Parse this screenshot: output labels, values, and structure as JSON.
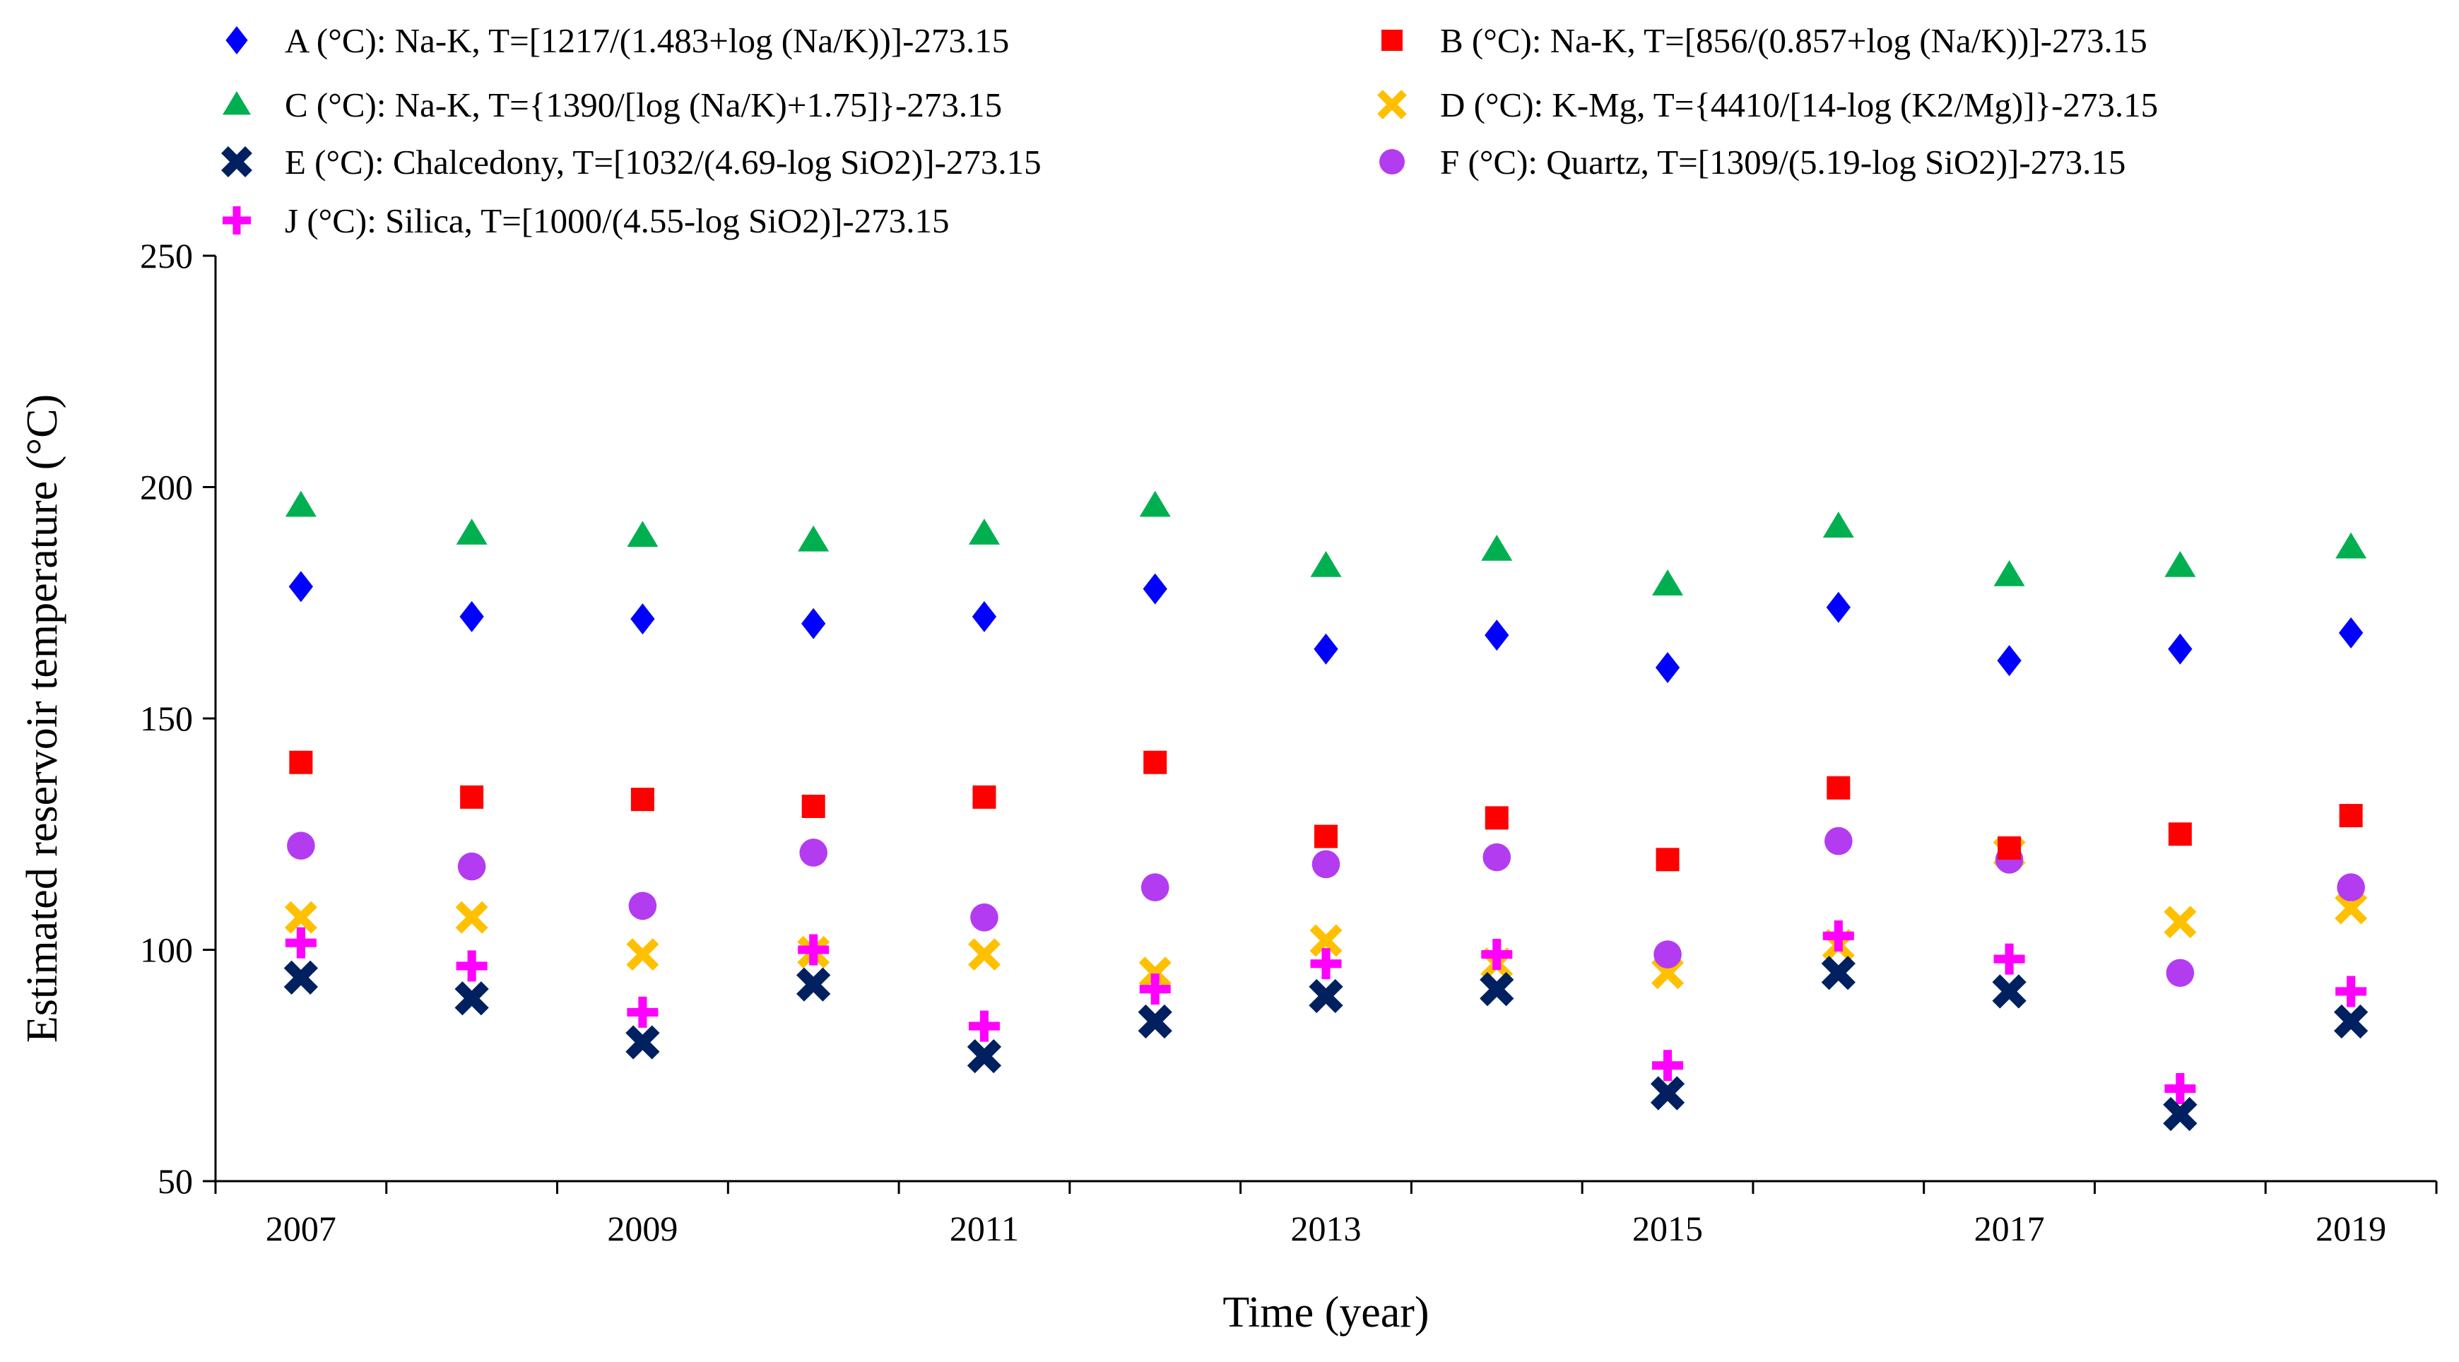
{
  "chart_data": {
    "type": "scatter",
    "title": "",
    "xlabel": "Time (year)",
    "ylabel": "Estimated reservoir temperature (°C)",
    "xlim": [
      2006.5,
      2019.5
    ],
    "ylim": [
      50,
      250
    ],
    "x_tick_labels": [
      "2007",
      "2009",
      "2011",
      "2013",
      "2015",
      "2017",
      "2019"
    ],
    "y_tick_labels": [
      "50",
      "100",
      "150",
      "200",
      "250"
    ],
    "grid": false,
    "legend_position": "top",
    "x": [
      2007,
      2008,
      2009,
      2010,
      2011,
      2012,
      2013,
      2014,
      2015,
      2016,
      2017,
      2018,
      2019
    ],
    "series": [
      {
        "name": "A (°C): Na-K, T=[1217/(1.483+log (Na/K))]-273.15",
        "marker": "diamond",
        "color": "#0000FF",
        "values": [
          178.5,
          172,
          171.5,
          170.5,
          172,
          178,
          165,
          168,
          161,
          174,
          162.5,
          165,
          168.5
        ]
      },
      {
        "name": "B (°C): Na-K, T=[856/(0.857+log (Na/K))]-273.15",
        "marker": "square",
        "color": "#FF0000",
        "values": [
          140.5,
          133,
          132.5,
          131,
          133,
          140.5,
          124.5,
          128.5,
          119.5,
          135,
          122,
          125,
          129
        ]
      },
      {
        "name": "C (°C): Na-K, T={1390/[log (Na/K)+1.75]}-273.15",
        "marker": "triangle",
        "color": "#00B050",
        "values": [
          196,
          190,
          189.5,
          188.5,
          190,
          196,
          183,
          186.5,
          179,
          191.5,
          181,
          183,
          187
        ]
      },
      {
        "name": "D (°C): K-Mg, T={4410/[14-log (K2/Mg)]}-273.15",
        "marker": "x",
        "color": "#FFC000",
        "values": [
          107,
          107,
          99,
          99.5,
          99,
          95,
          102,
          97,
          95,
          101,
          121,
          106,
          109
        ]
      },
      {
        "name": "E (°C): Chalcedony, T=[1032/(4.69-log SiO2)]-273.15",
        "marker": "bold-x",
        "color": "#002060",
        "values": [
          94,
          89.5,
          80,
          92.5,
          77,
          84.5,
          90,
          91.5,
          69,
          95,
          91,
          64.5,
          84.5
        ]
      },
      {
        "name": "F (°C): Quartz, T=[1309/(5.19-log SiO2)]-273.15",
        "marker": "circle",
        "color": "#B43CF0",
        "values": [
          122.5,
          118,
          109.5,
          121,
          107,
          113.5,
          118.5,
          120,
          99,
          123.5,
          119.5,
          95,
          113.5
        ]
      },
      {
        "name": "J (°C): Silica, T=[1000/(4.55-log SiO2)]-273.15",
        "marker": "plus",
        "color": "#FF00FF",
        "values": [
          101.5,
          96.5,
          86.5,
          100,
          83.5,
          91.5,
          97,
          99,
          75,
          103,
          98,
          70,
          91
        ]
      }
    ]
  }
}
